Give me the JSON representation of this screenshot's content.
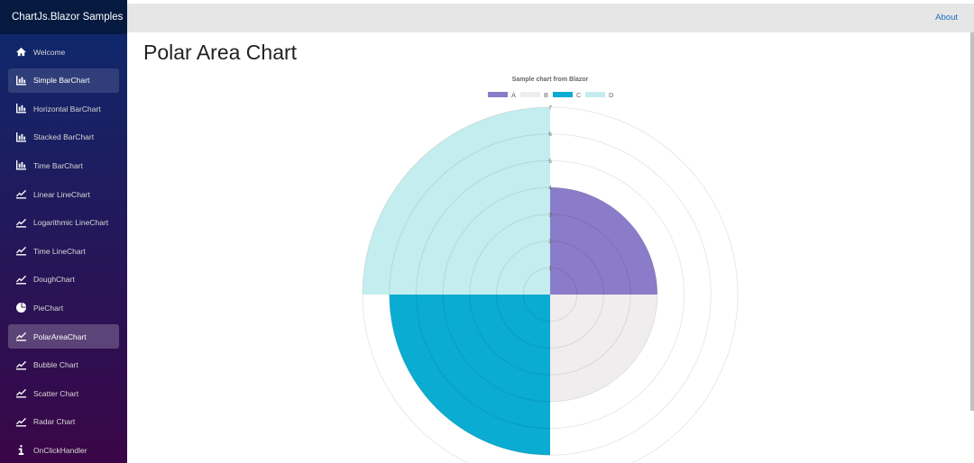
{
  "sidebar": {
    "brand": "ChartJs.Blazor Samples",
    "items": [
      {
        "label": "Welcome",
        "icon": "home-icon"
      },
      {
        "label": "Simple BarChart",
        "icon": "bar-chart-icon"
      },
      {
        "label": "Horizontal BarChart",
        "icon": "bar-chart-icon"
      },
      {
        "label": "Stacked BarChart",
        "icon": "bar-chart-icon"
      },
      {
        "label": "Time BarChart",
        "icon": "bar-chart-icon"
      },
      {
        "label": "Linear LineChart",
        "icon": "line-chart-icon"
      },
      {
        "label": "Logarithmic LineChart",
        "icon": "line-chart-icon"
      },
      {
        "label": "Time LineChart",
        "icon": "line-chart-icon"
      },
      {
        "label": "DoughChart",
        "icon": "line-chart-icon"
      },
      {
        "label": "PieChart",
        "icon": "pie-chart-icon"
      },
      {
        "label": "PolarAreaChart",
        "icon": "line-chart-icon"
      },
      {
        "label": "Bubble Chart",
        "icon": "line-chart-icon"
      },
      {
        "label": "Scatter Chart",
        "icon": "line-chart-icon"
      },
      {
        "label": "Radar Chart",
        "icon": "line-chart-icon"
      },
      {
        "label": "OnClickHandler",
        "icon": "info-icon"
      }
    ],
    "active_index": 10,
    "hover_index": 1
  },
  "header": {
    "about": "About"
  },
  "page": {
    "title": "Polar Area Chart"
  },
  "chart_data": {
    "type": "polarArea",
    "title": "Sample chart from Blazor",
    "categories": [
      "A",
      "B",
      "C",
      "D"
    ],
    "values": [
      4,
      4,
      6,
      7
    ],
    "colors": [
      "#8a7cc8",
      "#f0edee",
      "#0aacd1",
      "#c4edef"
    ],
    "rlim": [
      0,
      7
    ],
    "ticks": [
      1,
      2,
      3,
      4,
      5,
      6,
      7
    ],
    "legend": "top",
    "grid": true
  }
}
